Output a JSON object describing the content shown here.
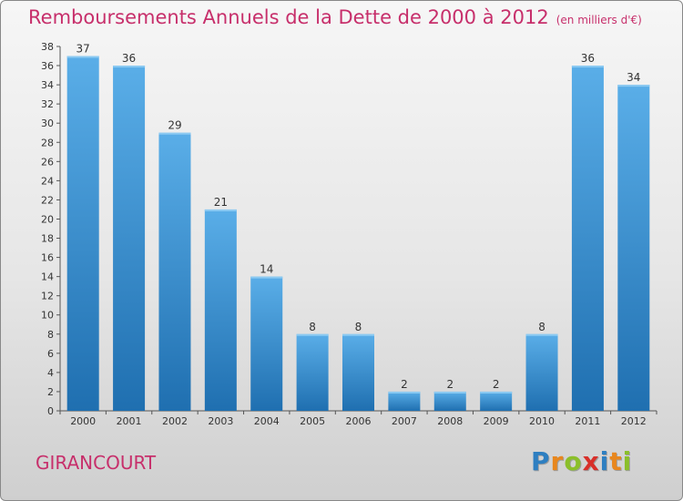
{
  "title": "Remboursements Annuels de la Dette de 2000 à 2012",
  "subtitle": "(en milliers d'€)",
  "commune": "GIRANCOURT",
  "logo": {
    "text": "Proxiti",
    "letters": [
      {
        "ch": "P",
        "color": "#2e7fc1"
      },
      {
        "ch": "r",
        "color": "#e8871e"
      },
      {
        "ch": "o",
        "color": "#8bbf2a"
      },
      {
        "ch": "x",
        "color": "#d8302a"
      },
      {
        "ch": "i",
        "color": "#2e7fc1"
      },
      {
        "ch": "t",
        "color": "#e8871e"
      },
      {
        "ch": "i",
        "color": "#8bbf2a"
      }
    ]
  },
  "colors": {
    "title": "#c72f6b",
    "bar_top": "#5aaee8",
    "bar_bottom": "#1f6fb0",
    "axis": "#555555",
    "text": "#333333"
  },
  "chart_data": {
    "type": "bar",
    "categories": [
      "2000",
      "2001",
      "2002",
      "2003",
      "2004",
      "2005",
      "2006",
      "2007",
      "2008",
      "2009",
      "2010",
      "2011",
      "2012"
    ],
    "values": [
      37,
      36,
      29,
      21,
      14,
      8,
      8,
      2,
      2,
      2,
      8,
      36,
      34
    ],
    "ylim": [
      0,
      38
    ],
    "yticks": [
      0,
      2,
      4,
      6,
      8,
      10,
      12,
      14,
      16,
      18,
      20,
      22,
      24,
      26,
      28,
      30,
      32,
      34,
      36,
      38
    ],
    "grid": false,
    "data_labels": true
  }
}
